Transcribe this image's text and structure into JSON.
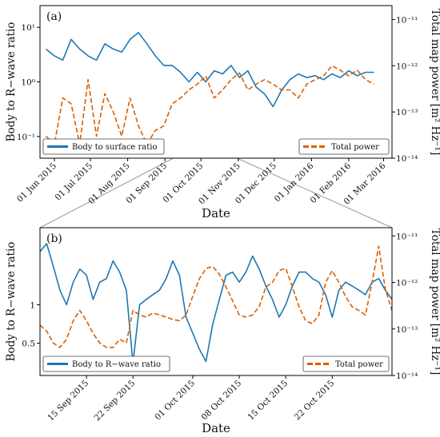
{
  "colors": {
    "body_ratio": "#1f77b4",
    "total_power": "#d95f02",
    "zoom_connector": "#9a9a9a"
  },
  "shared_labels": {
    "xlabel": "Date",
    "ylabel_left": "Body to R−wave ratio",
    "ylabel_right": "Total map power [m² Hz⁻¹]"
  },
  "chart_data": [
    {
      "panel": "(a)",
      "type": "line",
      "xlabel": "Date",
      "ylabel": "Body to R−wave ratio",
      "ylabel_right": "Total map power [m² Hz⁻¹]",
      "xlim": [
        "2015-05-20",
        "2016-03-08"
      ],
      "ylim": [
        0.04,
        25
      ],
      "ylim_right": [
        1e-14,
        2e-11
      ],
      "yscale": "log",
      "yscale_right": "log",
      "grid": false,
      "x_tick_labels": [
        {
          "label": "01 Jun 2015",
          "date": "2015-06-01"
        },
        {
          "label": "01 Jul 2015",
          "date": "2015-07-01"
        },
        {
          "label": "01 Aug 2015",
          "date": "2015-08-01"
        },
        {
          "label": "01 Sep 2015",
          "date": "2015-09-01"
        },
        {
          "label": "01 Oct 2015",
          "date": "2015-10-01"
        },
        {
          "label": "01 Nov 2015",
          "date": "2015-11-01"
        },
        {
          "label": "01 Dec 2015",
          "date": "2015-12-01"
        },
        {
          "label": "01 Jan 2016",
          "date": "2016-01-01"
        },
        {
          "label": "01 Feb 2016",
          "date": "2016-02-01"
        },
        {
          "label": "01 Mar 2016",
          "date": "2016-03-01"
        }
      ],
      "y_tick_labels_left": [
        {
          "label": "10⁻¹",
          "value": 0.1
        },
        {
          "label": "10⁰",
          "value": 1
        },
        {
          "label": "10¹",
          "value": 10
        }
      ],
      "y_tick_labels_right": [
        {
          "label": "10⁻¹⁴",
          "value": 1e-14
        },
        {
          "label": "10⁻¹³",
          "value": 1e-13
        },
        {
          "label": "10⁻¹²",
          "value": 1e-12
        },
        {
          "label": "10⁻¹¹",
          "value": 1e-11
        }
      ],
      "legend": [
        {
          "name": "Body to surface ratio",
          "position": "bottom-left"
        },
        {
          "name": "Total power",
          "position": "bottom-right"
        }
      ],
      "series": [
        {
          "name": "Body to surface ratio",
          "axis": "left",
          "style": "solid",
          "x": [
            "2015-05-25",
            "2015-06-01",
            "2015-06-08",
            "2015-06-15",
            "2015-06-22",
            "2015-06-29",
            "2015-07-06",
            "2015-07-13",
            "2015-07-20",
            "2015-07-27",
            "2015-08-03",
            "2015-08-10",
            "2015-08-17",
            "2015-08-24",
            "2015-08-31",
            "2015-09-07",
            "2015-09-14",
            "2015-09-21",
            "2015-09-28",
            "2015-10-05",
            "2015-10-12",
            "2015-10-19",
            "2015-10-26",
            "2015-11-02",
            "2015-11-09",
            "2015-11-16",
            "2015-11-23",
            "2015-11-30",
            "2015-12-07",
            "2015-12-14",
            "2015-12-21",
            "2015-12-28",
            "2016-01-04",
            "2016-01-11",
            "2016-01-18",
            "2016-01-25",
            "2016-02-01",
            "2016-02-08",
            "2016-02-15",
            "2016-02-22"
          ],
          "values": [
            4,
            3,
            2.5,
            6,
            4,
            3,
            2.5,
            5,
            4,
            3.5,
            6,
            8,
            5,
            3,
            2,
            2,
            1.5,
            1,
            1.5,
            1,
            1.6,
            1.4,
            2,
            1.2,
            1.6,
            0.8,
            0.6,
            0.35,
            0.7,
            1.1,
            1.4,
            1.2,
            1.3,
            1.1,
            1.4,
            1.2,
            1.6,
            1.3,
            1.5,
            1.5
          ]
        },
        {
          "name": "Total power",
          "axis": "right",
          "style": "dashed",
          "x": [
            "2015-05-25",
            "2015-06-01",
            "2015-06-08",
            "2015-06-15",
            "2015-06-22",
            "2015-06-29",
            "2015-07-06",
            "2015-07-13",
            "2015-07-20",
            "2015-07-27",
            "2015-08-03",
            "2015-08-10",
            "2015-08-17",
            "2015-08-24",
            "2015-08-31",
            "2015-09-07",
            "2015-09-14",
            "2015-09-21",
            "2015-09-28",
            "2015-10-05",
            "2015-10-12",
            "2015-10-19",
            "2015-10-26",
            "2015-11-02",
            "2015-11-09",
            "2015-11-16",
            "2015-11-23",
            "2015-11-30",
            "2015-12-07",
            "2015-12-14",
            "2015-12-21",
            "2015-12-28",
            "2016-01-04",
            "2016-01-11",
            "2016-01-18",
            "2016-01-25",
            "2016-02-01",
            "2016-02-08",
            "2016-02-15",
            "2016-02-22"
          ],
          "values": [
            3e-14,
            2e-14,
            2e-13,
            1.5e-13,
            2e-14,
            5e-13,
            3e-14,
            2.5e-13,
            1e-13,
            3e-14,
            2e-13,
            5e-14,
            2e-14,
            4e-14,
            5e-14,
            1.5e-13,
            2e-13,
            3e-13,
            4e-13,
            6e-13,
            2e-13,
            3e-13,
            5e-13,
            7e-13,
            3e-13,
            4e-13,
            5e-13,
            4e-13,
            3e-13,
            3e-13,
            2e-13,
            4e-13,
            5e-13,
            6e-13,
            1e-12,
            8e-13,
            6e-13,
            8e-13,
            5e-13,
            4e-13
          ]
        }
      ]
    },
    {
      "panel": "(b)",
      "type": "line",
      "xlabel": "Date",
      "ylabel": "Body to R−wave ratio",
      "ylabel_right": "Total map power [m² Hz⁻¹]",
      "xlim": [
        "2015-09-08",
        "2015-10-31"
      ],
      "ylim": [
        0.28,
        4
      ],
      "ylim_right": [
        1e-14,
        1.5e-11
      ],
      "yscale": "log",
      "yscale_right": "log",
      "grid": false,
      "x_tick_labels": [
        {
          "label": "15 Sep 2015",
          "date": "2015-09-15"
        },
        {
          "label": "22 Sep 2015",
          "date": "2015-09-22"
        },
        {
          "label": "01 Oct 2015",
          "date": "2015-10-01"
        },
        {
          "label": "08 Oct 2015",
          "date": "2015-10-08"
        },
        {
          "label": "15 Oct 2015",
          "date": "2015-10-15"
        },
        {
          "label": "22 Oct 2015",
          "date": "2015-10-22"
        }
      ],
      "y_tick_labels_left": [
        {
          "label": "0.5",
          "value": 0.5
        },
        {
          "label": "1",
          "value": 1
        }
      ],
      "y_tick_labels_right": [
        {
          "label": "10⁻¹⁴",
          "value": 1e-14
        },
        {
          "label": "10⁻¹³",
          "value": 1e-13
        },
        {
          "label": "10⁻¹²",
          "value": 1e-12
        },
        {
          "label": "10⁻¹¹",
          "value": 1e-11
        }
      ],
      "legend": [
        {
          "name": "Body to R−wave ratio",
          "position": "bottom-left"
        },
        {
          "name": "Total power",
          "position": "bottom-right"
        }
      ],
      "series": [
        {
          "name": "Body to R−wave ratio",
          "axis": "left",
          "style": "solid",
          "x": [
            "2015-09-08",
            "2015-09-09",
            "2015-09-10",
            "2015-09-11",
            "2015-09-12",
            "2015-09-13",
            "2015-09-14",
            "2015-09-15",
            "2015-09-16",
            "2015-09-17",
            "2015-09-18",
            "2015-09-19",
            "2015-09-20",
            "2015-09-21",
            "2015-09-22",
            "2015-09-23",
            "2015-09-24",
            "2015-09-25",
            "2015-09-26",
            "2015-09-27",
            "2015-09-28",
            "2015-09-29",
            "2015-09-30",
            "2015-10-01",
            "2015-10-02",
            "2015-10-03",
            "2015-10-04",
            "2015-10-05",
            "2015-10-06",
            "2015-10-07",
            "2015-10-08",
            "2015-10-09",
            "2015-10-10",
            "2015-10-11",
            "2015-10-12",
            "2015-10-13",
            "2015-10-14",
            "2015-10-15",
            "2015-10-16",
            "2015-10-17",
            "2015-10-18",
            "2015-10-19",
            "2015-10-20",
            "2015-10-21",
            "2015-10-22",
            "2015-10-23",
            "2015-10-24",
            "2015-10-25",
            "2015-10-26",
            "2015-10-27",
            "2015-10-28",
            "2015-10-29",
            "2015-10-30",
            "2015-10-31"
          ],
          "values": [
            2.6,
            3.0,
            2.0,
            1.3,
            1.0,
            1.5,
            1.9,
            1.7,
            1.1,
            1.5,
            1.6,
            2.2,
            1.8,
            1.3,
            0.35,
            1.0,
            1.1,
            1.2,
            1.3,
            1.6,
            2.2,
            1.7,
            0.8,
            0.6,
            0.45,
            0.36,
            0.7,
            1.1,
            1.7,
            1.8,
            1.5,
            1.8,
            2.4,
            1.9,
            1.4,
            1.1,
            0.8,
            1.0,
            1.4,
            1.8,
            1.8,
            1.6,
            1.5,
            1.2,
            0.8,
            1.3,
            1.5,
            1.4,
            1.3,
            1.2,
            1.5,
            1.6,
            1.3,
            1.1
          ]
        },
        {
          "name": "Total power",
          "axis": "right",
          "style": "dashed",
          "x": [
            "2015-09-08",
            "2015-09-09",
            "2015-09-10",
            "2015-09-11",
            "2015-09-12",
            "2015-09-13",
            "2015-09-14",
            "2015-09-15",
            "2015-09-16",
            "2015-09-17",
            "2015-09-18",
            "2015-09-19",
            "2015-09-20",
            "2015-09-21",
            "2015-09-22",
            "2015-09-23",
            "2015-09-24",
            "2015-09-25",
            "2015-09-26",
            "2015-09-27",
            "2015-09-28",
            "2015-09-29",
            "2015-09-30",
            "2015-10-01",
            "2015-10-02",
            "2015-10-03",
            "2015-10-04",
            "2015-10-05",
            "2015-10-06",
            "2015-10-07",
            "2015-10-08",
            "2015-10-09",
            "2015-10-10",
            "2015-10-11",
            "2015-10-12",
            "2015-10-13",
            "2015-10-14",
            "2015-10-15",
            "2015-10-16",
            "2015-10-17",
            "2015-10-18",
            "2015-10-19",
            "2015-10-20",
            "2015-10-21",
            "2015-10-22",
            "2015-10-23",
            "2015-10-24",
            "2015-10-25",
            "2015-10-26",
            "2015-10-27",
            "2015-10-28",
            "2015-10-29",
            "2015-10-30",
            "2015-10-31"
          ],
          "values": [
            1.2e-13,
            9e-14,
            5e-14,
            4e-14,
            6e-14,
            1.5e-13,
            2.5e-13,
            1.5e-13,
            8e-14,
            5e-14,
            4e-14,
            4e-14,
            6e-14,
            5e-14,
            2.5e-13,
            2e-13,
            1.8e-13,
            2.2e-13,
            2e-13,
            1.8e-13,
            1.6e-13,
            1.5e-13,
            2e-13,
            5e-13,
            1.2e-12,
            2e-12,
            2.2e-12,
            1.5e-12,
            8e-13,
            4e-13,
            2e-13,
            1.8e-13,
            2e-13,
            3e-13,
            8e-13,
            1e-12,
            1.8e-12,
            2e-12,
            8e-13,
            3e-13,
            1.5e-13,
            1.3e-13,
            2e-13,
            1e-12,
            1.8e-12,
            1e-12,
            5e-13,
            3e-13,
            2.5e-13,
            2e-13,
            1e-12,
            6e-12,
            7e-13,
            2.5e-13
          ]
        }
      ]
    }
  ]
}
